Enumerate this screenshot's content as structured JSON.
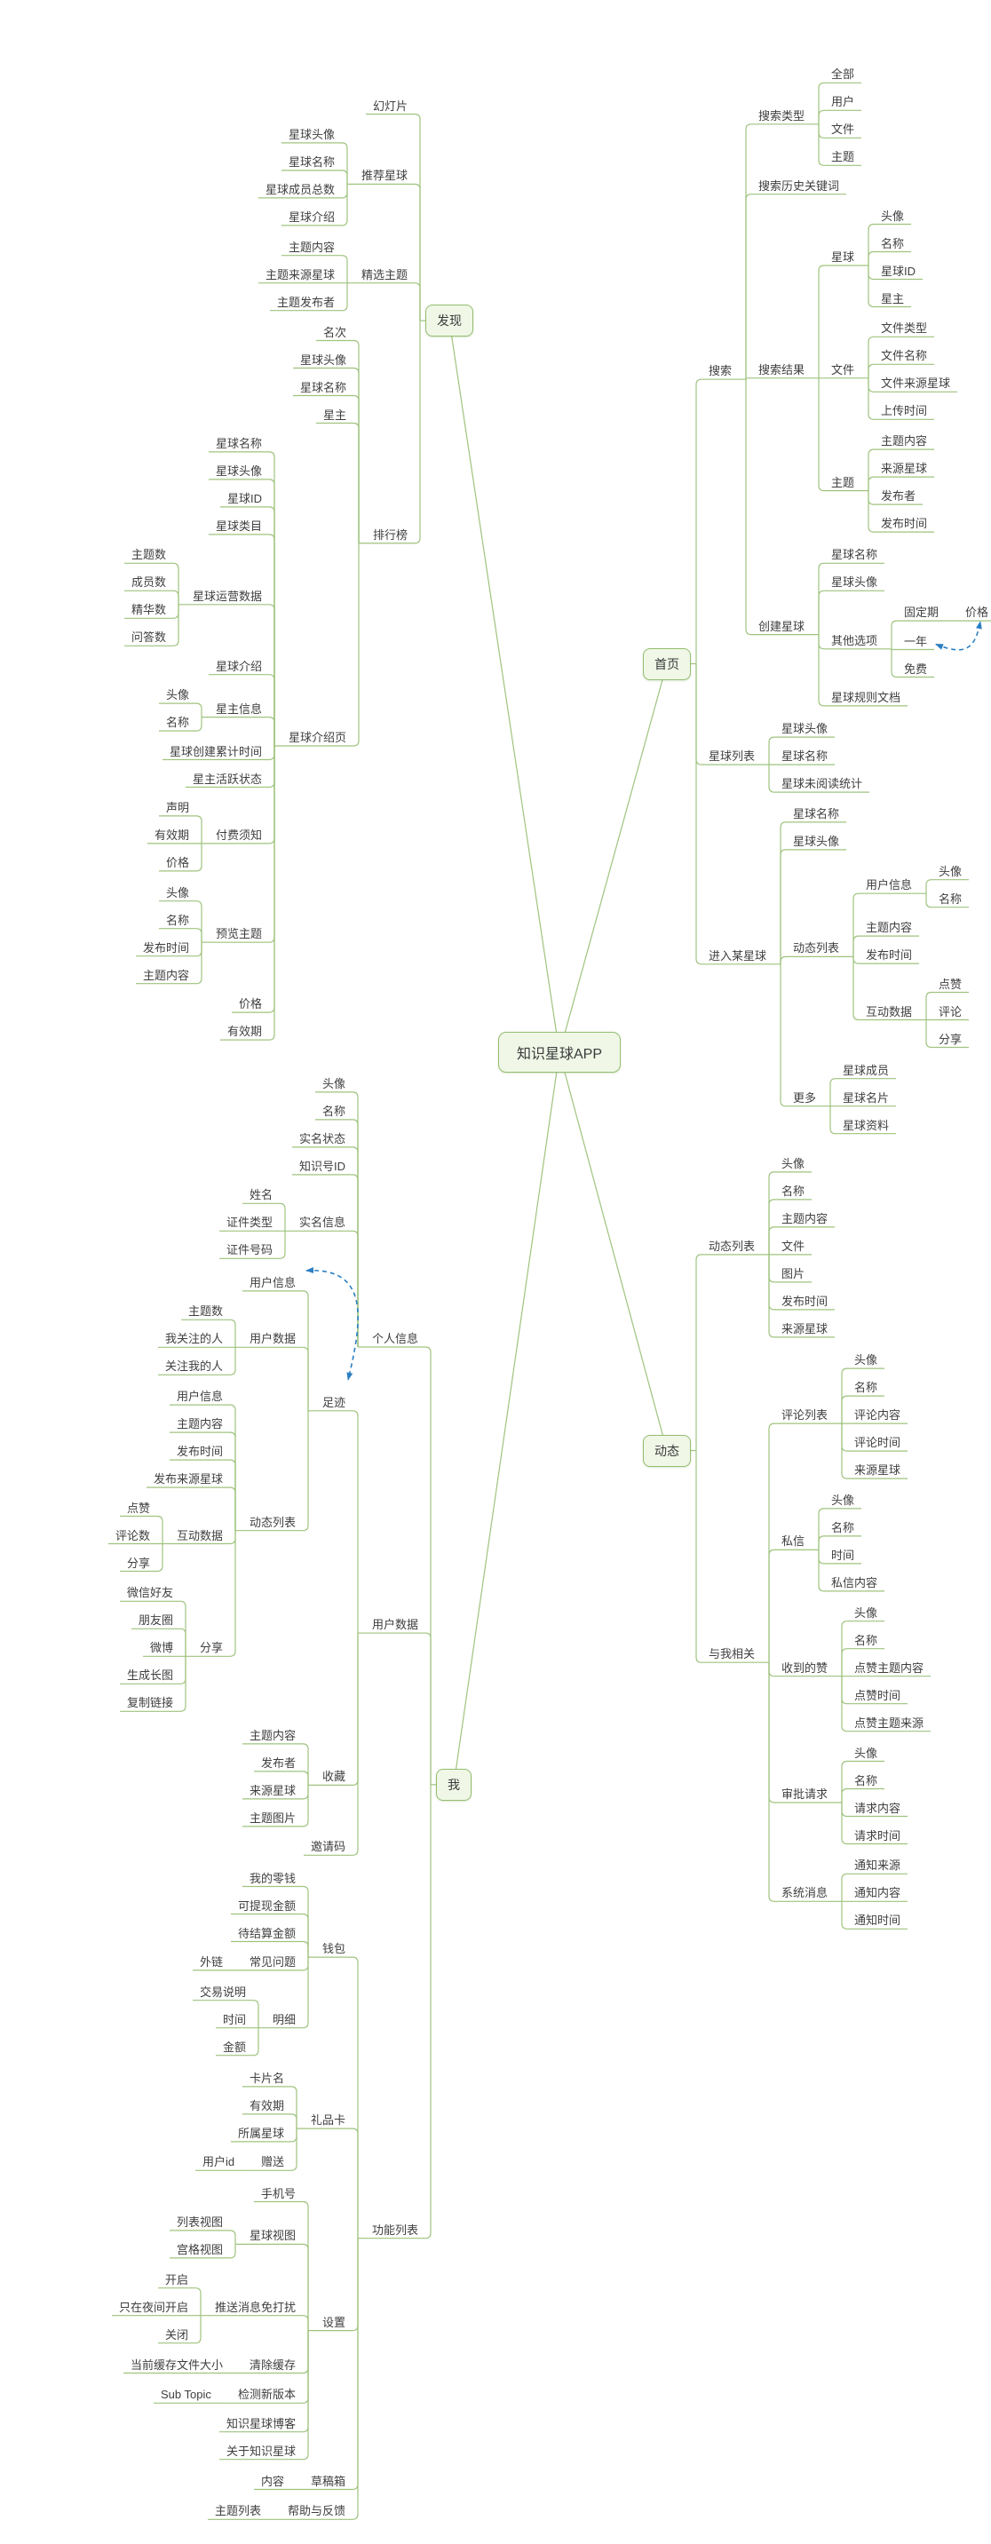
{
  "title": "知识星球APP 思维导图",
  "colors": {
    "line": "#9fc37e",
    "box_border": "#93bd6e",
    "box_fill": "#f0f7e7",
    "text": "#3f3f3f",
    "arrow": "#2b7fc3"
  },
  "tree": {
    "root": "知识星球APP",
    "branches": [
      {
        "label": "发现",
        "side": "left",
        "children": [
          {
            "t": "幻灯片"
          },
          {
            "t": "推荐星球",
            "c": [
              {
                "t": "星球头像"
              },
              {
                "t": "星球名称"
              },
              {
                "t": "星球成员总数"
              },
              {
                "t": "星球介绍"
              }
            ]
          },
          {
            "t": "精选主题",
            "c": [
              {
                "t": "主题内容"
              },
              {
                "t": "主题来源星球"
              },
              {
                "t": "主题发布者"
              }
            ]
          },
          {
            "t": "排行榜",
            "c": [
              {
                "t": "名次"
              },
              {
                "t": "星球头像"
              },
              {
                "t": "星球名称"
              },
              {
                "t": "星主"
              },
              {
                "t": "星球介绍页",
                "c": [
                  {
                    "t": "星球名称"
                  },
                  {
                    "t": "星球头像"
                  },
                  {
                    "t": "星球ID"
                  },
                  {
                    "t": "星球类目"
                  },
                  {
                    "t": "星球运营数据",
                    "c": [
                      {
                        "t": "主题数"
                      },
                      {
                        "t": "成员数"
                      },
                      {
                        "t": "精华数"
                      },
                      {
                        "t": "问答数"
                      }
                    ]
                  },
                  {
                    "t": "星球介绍"
                  },
                  {
                    "t": "星主信息",
                    "c": [
                      {
                        "t": "头像"
                      },
                      {
                        "t": "名称"
                      }
                    ]
                  },
                  {
                    "t": "星球创建累计时间"
                  },
                  {
                    "t": "星主活跃状态"
                  },
                  {
                    "t": "付费须知",
                    "c": [
                      {
                        "t": "声明"
                      },
                      {
                        "t": "有效期"
                      },
                      {
                        "t": "价格"
                      }
                    ]
                  },
                  {
                    "t": "预览主题",
                    "c": [
                      {
                        "t": "头像"
                      },
                      {
                        "t": "名称"
                      },
                      {
                        "t": "发布时间"
                      },
                      {
                        "t": "主题内容"
                      }
                    ]
                  },
                  {
                    "t": "价格"
                  },
                  {
                    "t": "有效期"
                  }
                ]
              }
            ]
          }
        ]
      },
      {
        "label": "首页",
        "side": "right",
        "children": [
          {
            "t": "搜索",
            "c": [
              {
                "t": "搜索类型",
                "c": [
                  {
                    "t": "全部"
                  },
                  {
                    "t": "用户"
                  },
                  {
                    "t": "文件"
                  },
                  {
                    "t": "主题"
                  }
                ]
              },
              {
                "t": "搜索历史关键词"
              },
              {
                "t": "搜索结果",
                "c": [
                  {
                    "t": "星球",
                    "c": [
                      {
                        "t": "头像"
                      },
                      {
                        "t": "名称"
                      },
                      {
                        "t": "星球ID"
                      },
                      {
                        "t": "星主"
                      }
                    ]
                  },
                  {
                    "t": "文件",
                    "c": [
                      {
                        "t": "文件类型"
                      },
                      {
                        "t": "文件名称"
                      },
                      {
                        "t": "文件来源星球"
                      },
                      {
                        "t": "上传时间"
                      }
                    ]
                  },
                  {
                    "t": "主题",
                    "c": [
                      {
                        "t": "主题内容"
                      },
                      {
                        "t": "来源星球"
                      },
                      {
                        "t": "发布者"
                      },
                      {
                        "t": "发布时间"
                      }
                    ]
                  }
                ]
              },
              {
                "t": "创建星球",
                "c": [
                  {
                    "t": "星球名称"
                  },
                  {
                    "t": "星球头像"
                  },
                  {
                    "t": "其他选项",
                    "c": [
                      {
                        "t": "固定期",
                        "c": [
                          {
                            "t": "价格",
                            "id": "price"
                          }
                        ]
                      },
                      {
                        "t": "一年",
                        "id": "year"
                      },
                      {
                        "t": "免费"
                      }
                    ]
                  },
                  {
                    "t": "星球规则文档"
                  }
                ]
              }
            ]
          },
          {
            "t": "星球列表",
            "c": [
              {
                "t": "星球头像"
              },
              {
                "t": "星球名称"
              },
              {
                "t": "星球未阅读统计"
              }
            ]
          },
          {
            "t": "进入某星球",
            "c": [
              {
                "t": "星球名称"
              },
              {
                "t": "星球头像"
              },
              {
                "t": "动态列表",
                "c": [
                  {
                    "t": "用户信息",
                    "c": [
                      {
                        "t": "头像"
                      },
                      {
                        "t": "名称"
                      }
                    ]
                  },
                  {
                    "t": "主题内容"
                  },
                  {
                    "t": "发布时间"
                  },
                  {
                    "t": "互动数据",
                    "c": [
                      {
                        "t": "点赞"
                      },
                      {
                        "t": "评论"
                      },
                      {
                        "t": "分享"
                      }
                    ]
                  }
                ]
              },
              {
                "t": "更多",
                "c": [
                  {
                    "t": "星球成员"
                  },
                  {
                    "t": "星球名片"
                  },
                  {
                    "t": "星球资料"
                  }
                ]
              }
            ]
          }
        ]
      },
      {
        "label": "动态",
        "side": "right",
        "children": [
          {
            "t": "动态列表",
            "c": [
              {
                "t": "头像"
              },
              {
                "t": "名称"
              },
              {
                "t": "主题内容"
              },
              {
                "t": "文件"
              },
              {
                "t": "图片"
              },
              {
                "t": "发布时间"
              },
              {
                "t": "来源星球"
              }
            ]
          },
          {
            "t": "与我相关",
            "c": [
              {
                "t": "评论列表",
                "c": [
                  {
                    "t": "头像"
                  },
                  {
                    "t": "名称"
                  },
                  {
                    "t": "评论内容"
                  },
                  {
                    "t": "评论时间"
                  },
                  {
                    "t": "来源星球"
                  }
                ]
              },
              {
                "t": "私信",
                "c": [
                  {
                    "t": "头像"
                  },
                  {
                    "t": "名称"
                  },
                  {
                    "t": "时间"
                  },
                  {
                    "t": "私信内容"
                  }
                ]
              },
              {
                "t": "收到的赞",
                "c": [
                  {
                    "t": "头像"
                  },
                  {
                    "t": "名称"
                  },
                  {
                    "t": "点赞主题内容"
                  },
                  {
                    "t": "点赞时间"
                  },
                  {
                    "t": "点赞主题来源"
                  }
                ]
              },
              {
                "t": "审批请求",
                "c": [
                  {
                    "t": "头像"
                  },
                  {
                    "t": "名称"
                  },
                  {
                    "t": "请求内容"
                  },
                  {
                    "t": "请求时间"
                  }
                ]
              },
              {
                "t": "系统消息",
                "c": [
                  {
                    "t": "通知来源"
                  },
                  {
                    "t": "通知内容"
                  },
                  {
                    "t": "通知时间"
                  }
                ]
              }
            ]
          }
        ]
      },
      {
        "label": "我",
        "side": "left",
        "children": [
          {
            "t": "个人信息",
            "c": [
              {
                "t": "头像"
              },
              {
                "t": "名称"
              },
              {
                "t": "实名状态"
              },
              {
                "t": "知识号ID"
              },
              {
                "t": "实名信息",
                "c": [
                  {
                    "t": "姓名"
                  },
                  {
                    "t": "证件类型"
                  },
                  {
                    "t": "证件号码"
                  }
                ]
              }
            ]
          },
          {
            "t": "用户数据",
            "c": [
              {
                "t": "足迹",
                "id": "zuji",
                "c": [
                  {
                    "t": "用户信息",
                    "id": "uinfo"
                  },
                  {
                    "t": "用户数据",
                    "c": [
                      {
                        "t": "主题数"
                      },
                      {
                        "t": "我关注的人"
                      },
                      {
                        "t": "关注我的人"
                      }
                    ]
                  },
                  {
                    "t": "动态列表",
                    "c": [
                      {
                        "t": "用户信息"
                      },
                      {
                        "t": "主题内容"
                      },
                      {
                        "t": "发布时间"
                      },
                      {
                        "t": "发布来源星球"
                      },
                      {
                        "t": "互动数据",
                        "c": [
                          {
                            "t": "点赞"
                          },
                          {
                            "t": "评论数"
                          },
                          {
                            "t": "分享"
                          }
                        ]
                      },
                      {
                        "t": "分享",
                        "c": [
                          {
                            "t": "微信好友"
                          },
                          {
                            "t": "朋友圈"
                          },
                          {
                            "t": "微博"
                          },
                          {
                            "t": "生成长图"
                          },
                          {
                            "t": "复制链接"
                          }
                        ]
                      }
                    ]
                  }
                ]
              },
              {
                "t": "收藏",
                "c": [
                  {
                    "t": "主题内容"
                  },
                  {
                    "t": "发布者"
                  },
                  {
                    "t": "来源星球"
                  },
                  {
                    "t": "主题图片"
                  }
                ]
              },
              {
                "t": "邀请码"
              }
            ]
          },
          {
            "t": "功能列表",
            "c": [
              {
                "t": "钱包",
                "c": [
                  {
                    "t": "我的零钱"
                  },
                  {
                    "t": "可提现金额"
                  },
                  {
                    "t": "待结算金额"
                  },
                  {
                    "t": "常见问题",
                    "c": [
                      {
                        "t": "外链"
                      }
                    ]
                  },
                  {
                    "t": "明细",
                    "c": [
                      {
                        "t": "交易说明"
                      },
                      {
                        "t": "时间"
                      },
                      {
                        "t": "金额"
                      }
                    ]
                  }
                ]
              },
              {
                "t": "礼品卡",
                "c": [
                  {
                    "t": "卡片名"
                  },
                  {
                    "t": "有效期"
                  },
                  {
                    "t": "所属星球"
                  },
                  {
                    "t": "赠送",
                    "c": [
                      {
                        "t": "用户id"
                      }
                    ]
                  }
                ]
              },
              {
                "t": "设置",
                "c": [
                  {
                    "t": "手机号"
                  },
                  {
                    "t": "星球视图",
                    "c": [
                      {
                        "t": "列表视图"
                      },
                      {
                        "t": "宫格视图"
                      }
                    ]
                  },
                  {
                    "t": "推送消息免打扰",
                    "c": [
                      {
                        "t": "开启"
                      },
                      {
                        "t": "只在夜间开启"
                      },
                      {
                        "t": "关闭"
                      }
                    ]
                  },
                  {
                    "t": "清除缓存",
                    "c": [
                      {
                        "t": "当前缓存文件大小"
                      }
                    ]
                  },
                  {
                    "t": "检测新版本",
                    "c": [
                      {
                        "t": "Sub Topic"
                      }
                    ]
                  },
                  {
                    "t": "知识星球博客"
                  },
                  {
                    "t": "关于知识星球"
                  }
                ]
              },
              {
                "t": "草稿箱",
                "c": [
                  {
                    "t": "内容"
                  }
                ]
              },
              {
                "t": "帮助与反馈",
                "c": [
                  {
                    "t": "主题列表"
                  }
                ]
              }
            ]
          }
        ]
      }
    ],
    "relationships": [
      {
        "from": "year",
        "to": "price",
        "style": "dashed-blue"
      },
      {
        "from": "zuji",
        "to": "uinfo",
        "style": "dashed-blue"
      }
    ]
  }
}
